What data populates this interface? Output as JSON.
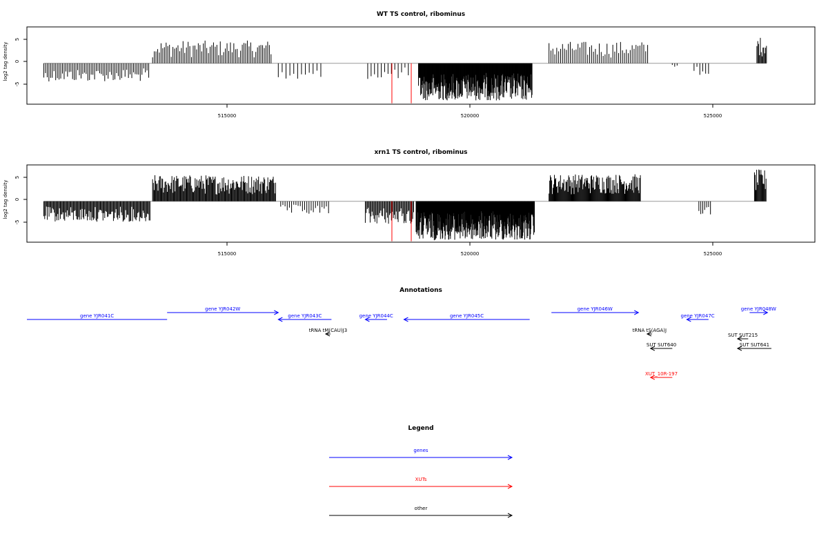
{
  "colors": {
    "genes": "#0000ff",
    "xuts": "#ff0000",
    "other": "#000000",
    "track": "#000000",
    "baseline": "#999999",
    "highlight": "#ff0000"
  },
  "chart_data": [
    {
      "type": "bar",
      "title": "WT TS control, ribominus",
      "ylabel": "log2 tag density",
      "xlim": [
        511200,
        527500
      ],
      "ylim": [
        -9,
        8
      ],
      "yticks": [
        "5",
        "0",
        "-5"
      ],
      "xticks": [
        "515000",
        "520000",
        "525000"
      ],
      "highlight_positions": [
        518750,
        519150
      ],
      "regions": [
        {
          "start": 511550,
          "end": 513750,
          "sign": -1,
          "maxabs": 4.0,
          "step": 35
        },
        {
          "start": 513800,
          "end": 516250,
          "sign": 1,
          "maxabs": 5.0,
          "step": 35
        },
        {
          "start": 516400,
          "end": 517300,
          "sign": -1,
          "maxabs": 4.2,
          "step": 80
        },
        {
          "start": 518250,
          "end": 519150,
          "sign": -1,
          "maxabs": 3.5,
          "step": 70
        },
        {
          "start": 519300,
          "end": 521650,
          "sign": -1,
          "maxabs": 8.2,
          "step": 9
        },
        {
          "start": 522000,
          "end": 524050,
          "sign": 1,
          "maxabs": 4.8,
          "step": 40
        },
        {
          "start": 524550,
          "end": 524650,
          "sign": -1,
          "maxabs": 1.0,
          "step": 50
        },
        {
          "start": 525000,
          "end": 525350,
          "sign": -1,
          "maxabs": 2.6,
          "step": 60
        },
        {
          "start": 526300,
          "end": 526500,
          "sign": 1,
          "maxabs": 5.8,
          "step": 18
        }
      ]
    },
    {
      "type": "bar",
      "title": "xrn1 TS control, ribominus",
      "ylabel": "log2 tag density",
      "xlim": [
        511200,
        527500
      ],
      "ylim": [
        -9,
        8
      ],
      "yticks": [
        "5",
        "0",
        "-5"
      ],
      "xticks": [
        "515000",
        "520000",
        "525000"
      ],
      "highlight_positions": [
        518750,
        519150
      ],
      "regions": [
        {
          "start": 511550,
          "end": 513750,
          "sign": -1,
          "maxabs": 4.5,
          "step": 18
        },
        {
          "start": 513800,
          "end": 516350,
          "sign": 1,
          "maxabs": 5.8,
          "step": 16
        },
        {
          "start": 516450,
          "end": 517450,
          "sign": -1,
          "maxabs": 3.0,
          "step": 45
        },
        {
          "start": 518200,
          "end": 519200,
          "sign": -1,
          "maxabs": 5.0,
          "step": 20
        },
        {
          "start": 519250,
          "end": 521700,
          "sign": -1,
          "maxabs": 8.6,
          "step": 8
        },
        {
          "start": 522000,
          "end": 523900,
          "sign": 1,
          "maxabs": 6.0,
          "step": 14
        },
        {
          "start": 525100,
          "end": 525350,
          "sign": -1,
          "maxabs": 3.0,
          "step": 40
        },
        {
          "start": 526250,
          "end": 526500,
          "sign": 1,
          "maxabs": 7.0,
          "step": 15
        }
      ]
    }
  ],
  "annotations": {
    "title": "Annotations",
    "items": [
      {
        "label": "gene YJR041C",
        "kind": "genes",
        "start": 511200,
        "end": 514100,
        "strand": "-",
        "row": 1,
        "arrow": false
      },
      {
        "label": "gene YJR042W",
        "kind": "genes",
        "start": 514100,
        "end": 516400,
        "strand": "+",
        "row": 0,
        "arrow": true
      },
      {
        "label": "gene YJR043C",
        "kind": "genes",
        "start": 516400,
        "end": 517500,
        "strand": "-",
        "row": 1,
        "arrow": true
      },
      {
        "label": "gene YJR044C",
        "kind": "genes",
        "start": 518200,
        "end": 518650,
        "strand": "-",
        "row": 1,
        "arrow": true
      },
      {
        "label": "gene YJR045C",
        "kind": "genes",
        "start": 519000,
        "end": 521600,
        "strand": "-",
        "row": 1,
        "arrow": true
      },
      {
        "label": "gene YJR046W",
        "kind": "genes",
        "start": 522050,
        "end": 523850,
        "strand": "+",
        "row": 0,
        "arrow": true
      },
      {
        "label": "gene YJR047C",
        "kind": "genes",
        "start": 524850,
        "end": 525300,
        "strand": "-",
        "row": 1,
        "arrow": true
      },
      {
        "label": "gene YJR048W",
        "kind": "genes",
        "start": 526150,
        "end": 526520,
        "strand": "+",
        "row": 0,
        "arrow": true
      },
      {
        "label": "tRNA tM(CAU)J3",
        "kind": "other",
        "start": 517380,
        "end": 517480,
        "strand": "-",
        "row": 2,
        "arrow": true
      },
      {
        "label": "tRNA tS(AGA)J",
        "kind": "other",
        "start": 524030,
        "end": 524130,
        "strand": "-",
        "row": 2,
        "arrow": true
      },
      {
        "label": "SUT SUT640",
        "kind": "other",
        "start": 524100,
        "end": 524550,
        "strand": "-",
        "row": 3,
        "arrow": true
      },
      {
        "label": "SUT SUT215",
        "kind": "other",
        "start": 525900,
        "end": 526120,
        "strand": "-",
        "row": 4,
        "arrow": true
      },
      {
        "label": "SUT SUT641",
        "kind": "other",
        "start": 525900,
        "end": 526600,
        "strand": "-",
        "row": 5,
        "arrow": true
      },
      {
        "label": "XUT_10R-197",
        "kind": "xuts",
        "start": 524100,
        "end": 524550,
        "strand": "-",
        "row": 6,
        "arrow": true
      }
    ]
  },
  "legend": {
    "title": "Legend",
    "items": [
      {
        "label": "genes",
        "kind": "genes"
      },
      {
        "label": "XUTs",
        "kind": "xuts"
      },
      {
        "label": "other",
        "kind": "other"
      }
    ]
  }
}
